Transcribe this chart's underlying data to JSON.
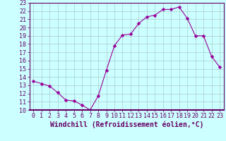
{
  "x": [
    0,
    1,
    2,
    3,
    4,
    5,
    6,
    7,
    8,
    9,
    10,
    11,
    12,
    13,
    14,
    15,
    16,
    17,
    18,
    19,
    20,
    21,
    22,
    23
  ],
  "y": [
    13.5,
    13.2,
    12.9,
    12.1,
    11.2,
    11.1,
    10.6,
    10.0,
    11.7,
    14.8,
    17.8,
    19.1,
    19.2,
    20.5,
    21.3,
    21.5,
    22.2,
    22.2,
    22.5,
    21.1,
    19.0,
    19.0,
    16.5,
    15.2
  ],
  "line_color": "#990099",
  "marker": "D",
  "marker_size": 2.5,
  "background_color": "#ccffff",
  "plot_bg_color": "#ccffff",
  "grid_color": "#aacccc",
  "xlabel": "Windchill (Refroidissement éolien,°C)",
  "xlabel_fontsize": 7,
  "tick_fontsize": 6,
  "ylim": [
    10,
    23
  ],
  "xlim": [
    -0.5,
    23.5
  ],
  "yticks": [
    10,
    11,
    12,
    13,
    14,
    15,
    16,
    17,
    18,
    19,
    20,
    21,
    22,
    23
  ],
  "xticks": [
    0,
    1,
    2,
    3,
    4,
    5,
    6,
    7,
    8,
    9,
    10,
    11,
    12,
    13,
    14,
    15,
    16,
    17,
    18,
    19,
    20,
    21,
    22,
    23
  ],
  "label_color": "#660066",
  "spine_color": "#660066",
  "separator_color": "#660066"
}
